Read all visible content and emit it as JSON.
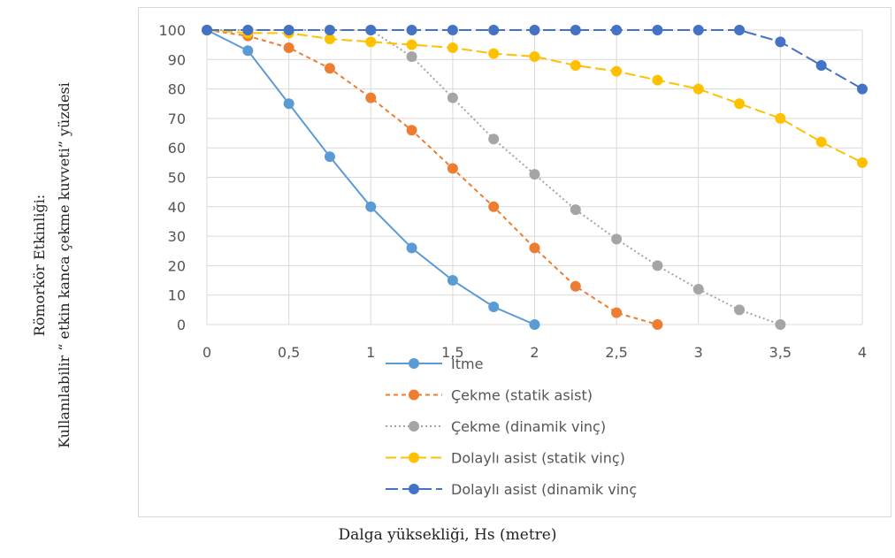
{
  "chart_data": {
    "type": "line",
    "title": "",
    "xlabel": "Dalga yüksekliği, Hs (metre)",
    "ylabel_lines": [
      "Kullanılabilir “ etkin kanca çekme kuvveti”    yüzdesi",
      "Römorkör Etkinliği:"
    ],
    "xlim": [
      0,
      4
    ],
    "ylim": [
      0,
      100
    ],
    "x_ticks": [
      "0",
      "0,5",
      "1",
      "1,5",
      "2",
      "2,5",
      "3",
      "3,5",
      "4"
    ],
    "y_ticks": [
      "0",
      "10",
      "20",
      "30",
      "40",
      "50",
      "60",
      "70",
      "80",
      "90",
      "100"
    ],
    "grid": true,
    "legend_position": "bottom",
    "series": [
      {
        "name": "İtme",
        "color": "#5b9bd5",
        "dash": "",
        "width": 2,
        "x": [
          0,
          0.25,
          0.5,
          0.75,
          1,
          1.25,
          1.5,
          1.75,
          2
        ],
        "y": [
          100,
          93,
          75,
          57,
          40,
          26,
          15,
          6,
          0
        ]
      },
      {
        "name": "Çekme (statik asist)",
        "color": "#ed7d31",
        "dash": "5,4",
        "width": 2,
        "x": [
          0,
          0.25,
          0.5,
          0.75,
          1,
          1.25,
          1.5,
          1.75,
          2,
          2.25,
          2.5,
          2.75
        ],
        "y": [
          100,
          98,
          94,
          87,
          77,
          66,
          53,
          40,
          26,
          13,
          4,
          0
        ]
      },
      {
        "name": "Çekme (dinamik vinç)",
        "color": "#a5a5a5",
        "dash": "2,3",
        "width": 2,
        "x": [
          0,
          0.25,
          0.5,
          0.75,
          1,
          1.25,
          1.5,
          1.75,
          2,
          2.25,
          2.5,
          2.75,
          3,
          3.25,
          3.5
        ],
        "y": [
          100,
          100,
          100,
          100,
          100,
          91,
          77,
          63,
          51,
          39,
          29,
          20,
          12,
          5,
          0
        ]
      },
      {
        "name": "Dolaylı asist (statik vinç)",
        "color": "#ffc000",
        "dash": "12,5",
        "width": 2,
        "x": [
          0,
          0.25,
          0.5,
          0.75,
          1,
          1.25,
          1.5,
          1.75,
          2,
          2.25,
          2.5,
          2.75,
          3,
          3.25,
          3.5,
          3.75,
          4
        ],
        "y": [
          100,
          99,
          99,
          97,
          96,
          95,
          94,
          92,
          91,
          88,
          86,
          83,
          80,
          75,
          70,
          62,
          55
        ]
      },
      {
        "name": "Dolaylı asist (dinamik vinç",
        "color": "#4472c4",
        "dash": "14,5",
        "width": 2,
        "x": [
          0,
          0.25,
          0.5,
          0.75,
          1,
          1.25,
          1.5,
          1.75,
          2,
          2.25,
          2.5,
          2.75,
          3,
          3.25,
          3.5,
          3.75,
          4
        ],
        "y": [
          100,
          100,
          100,
          100,
          100,
          100,
          100,
          100,
          100,
          100,
          100,
          100,
          100,
          100,
          96,
          88,
          80
        ]
      }
    ]
  }
}
